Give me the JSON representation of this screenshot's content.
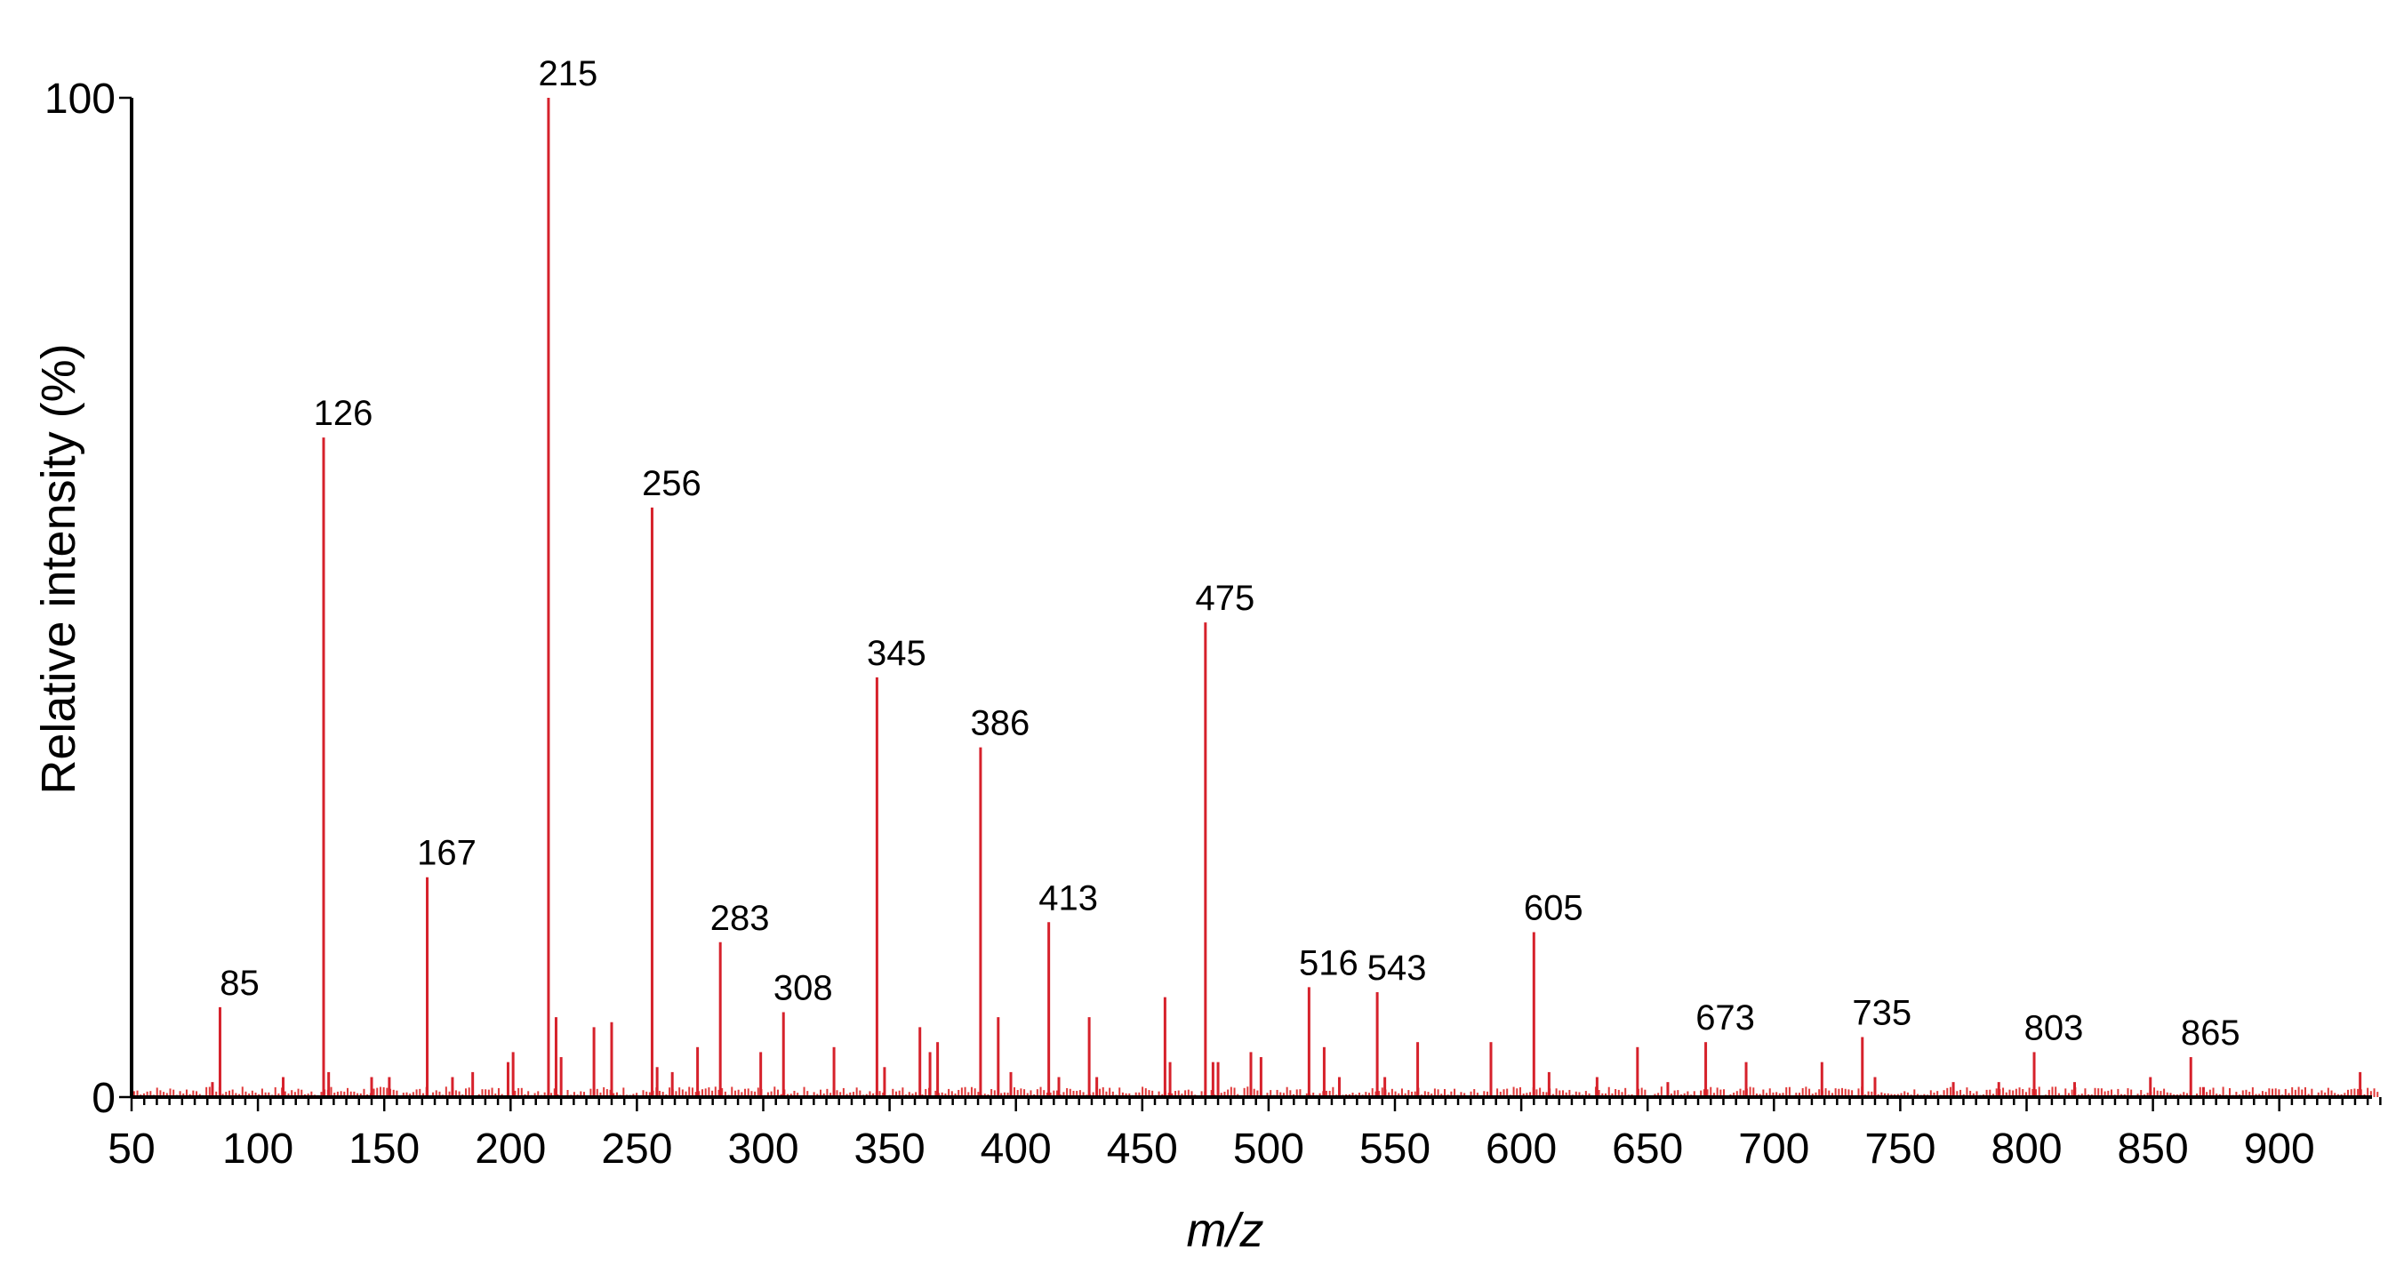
{
  "chart_data": {
    "type": "bar",
    "xlabel": "m/z",
    "ylabel": "Relative intensity (%)",
    "xlim": [
      50,
      940
    ],
    "ylim": [
      0,
      100
    ],
    "x_ticks": [
      50,
      100,
      150,
      200,
      250,
      300,
      350,
      400,
      450,
      500,
      550,
      600,
      650,
      700,
      750,
      800,
      850,
      900
    ],
    "y_ticks": [
      0,
      100
    ],
    "bar_color": "#d6212b",
    "labeled_peaks": [
      {
        "mz": 85,
        "label": "85",
        "intensity": 9
      },
      {
        "mz": 126,
        "label": "126",
        "intensity": 66
      },
      {
        "mz": 167,
        "label": "167",
        "intensity": 22
      },
      {
        "mz": 215,
        "label": "215",
        "intensity": 100
      },
      {
        "mz": 256,
        "label": "256",
        "intensity": 59
      },
      {
        "mz": 283,
        "label": "283",
        "intensity": 15.5
      },
      {
        "mz": 308,
        "label": "308",
        "intensity": 8.5
      },
      {
        "mz": 345,
        "label": "345",
        "intensity": 42
      },
      {
        "mz": 386,
        "label": "386",
        "intensity": 35
      },
      {
        "mz": 413,
        "label": "413",
        "intensity": 17.5
      },
      {
        "mz": 475,
        "label": "475",
        "intensity": 47.5
      },
      {
        "mz": 516,
        "label": "516",
        "intensity": 11
      },
      {
        "mz": 543,
        "label": "543",
        "intensity": 10.5
      },
      {
        "mz": 605,
        "label": "605",
        "intensity": 16.5
      },
      {
        "mz": 673,
        "label": "673",
        "intensity": 5.5
      },
      {
        "mz": 735,
        "label": "735",
        "intensity": 6
      },
      {
        "mz": 803,
        "label": "803",
        "intensity": 4.5
      },
      {
        "mz": 865,
        "label": "865",
        "intensity": 4
      }
    ],
    "minor_peaks": [
      {
        "mz": 82,
        "intensity": 1.5
      },
      {
        "mz": 110,
        "intensity": 2
      },
      {
        "mz": 128,
        "intensity": 2.5
      },
      {
        "mz": 145,
        "intensity": 2
      },
      {
        "mz": 152,
        "intensity": 2
      },
      {
        "mz": 177,
        "intensity": 2
      },
      {
        "mz": 185,
        "intensity": 2.5
      },
      {
        "mz": 199,
        "intensity": 3.5
      },
      {
        "mz": 201,
        "intensity": 4.5
      },
      {
        "mz": 218,
        "intensity": 8
      },
      {
        "mz": 220,
        "intensity": 4
      },
      {
        "mz": 233,
        "intensity": 7
      },
      {
        "mz": 240,
        "intensity": 7.5
      },
      {
        "mz": 258,
        "intensity": 3
      },
      {
        "mz": 264,
        "intensity": 2.5
      },
      {
        "mz": 274,
        "intensity": 5
      },
      {
        "mz": 299,
        "intensity": 4.5
      },
      {
        "mz": 328,
        "intensity": 5
      },
      {
        "mz": 348,
        "intensity": 3
      },
      {
        "mz": 362,
        "intensity": 7
      },
      {
        "mz": 366,
        "intensity": 4.5
      },
      {
        "mz": 369,
        "intensity": 5.5
      },
      {
        "mz": 393,
        "intensity": 8
      },
      {
        "mz": 398,
        "intensity": 2.5
      },
      {
        "mz": 417,
        "intensity": 2
      },
      {
        "mz": 429,
        "intensity": 8
      },
      {
        "mz": 432,
        "intensity": 2
      },
      {
        "mz": 459,
        "intensity": 10
      },
      {
        "mz": 461,
        "intensity": 3.5
      },
      {
        "mz": 478,
        "intensity": 3.5
      },
      {
        "mz": 480,
        "intensity": 3.5
      },
      {
        "mz": 493,
        "intensity": 4.5
      },
      {
        "mz": 497,
        "intensity": 4
      },
      {
        "mz": 522,
        "intensity": 5
      },
      {
        "mz": 528,
        "intensity": 2
      },
      {
        "mz": 546,
        "intensity": 2
      },
      {
        "mz": 559,
        "intensity": 5.5
      },
      {
        "mz": 588,
        "intensity": 5.5
      },
      {
        "mz": 611,
        "intensity": 2.5
      },
      {
        "mz": 630,
        "intensity": 2
      },
      {
        "mz": 646,
        "intensity": 5
      },
      {
        "mz": 658,
        "intensity": 1.5
      },
      {
        "mz": 689,
        "intensity": 3.5
      },
      {
        "mz": 719,
        "intensity": 3.5
      },
      {
        "mz": 740,
        "intensity": 2
      },
      {
        "mz": 771,
        "intensity": 1.5
      },
      {
        "mz": 789,
        "intensity": 1.5
      },
      {
        "mz": 819,
        "intensity": 1.5
      },
      {
        "mz": 849,
        "intensity": 2
      },
      {
        "mz": 870,
        "intensity": 1
      },
      {
        "mz": 932,
        "intensity": 2.5
      }
    ]
  }
}
